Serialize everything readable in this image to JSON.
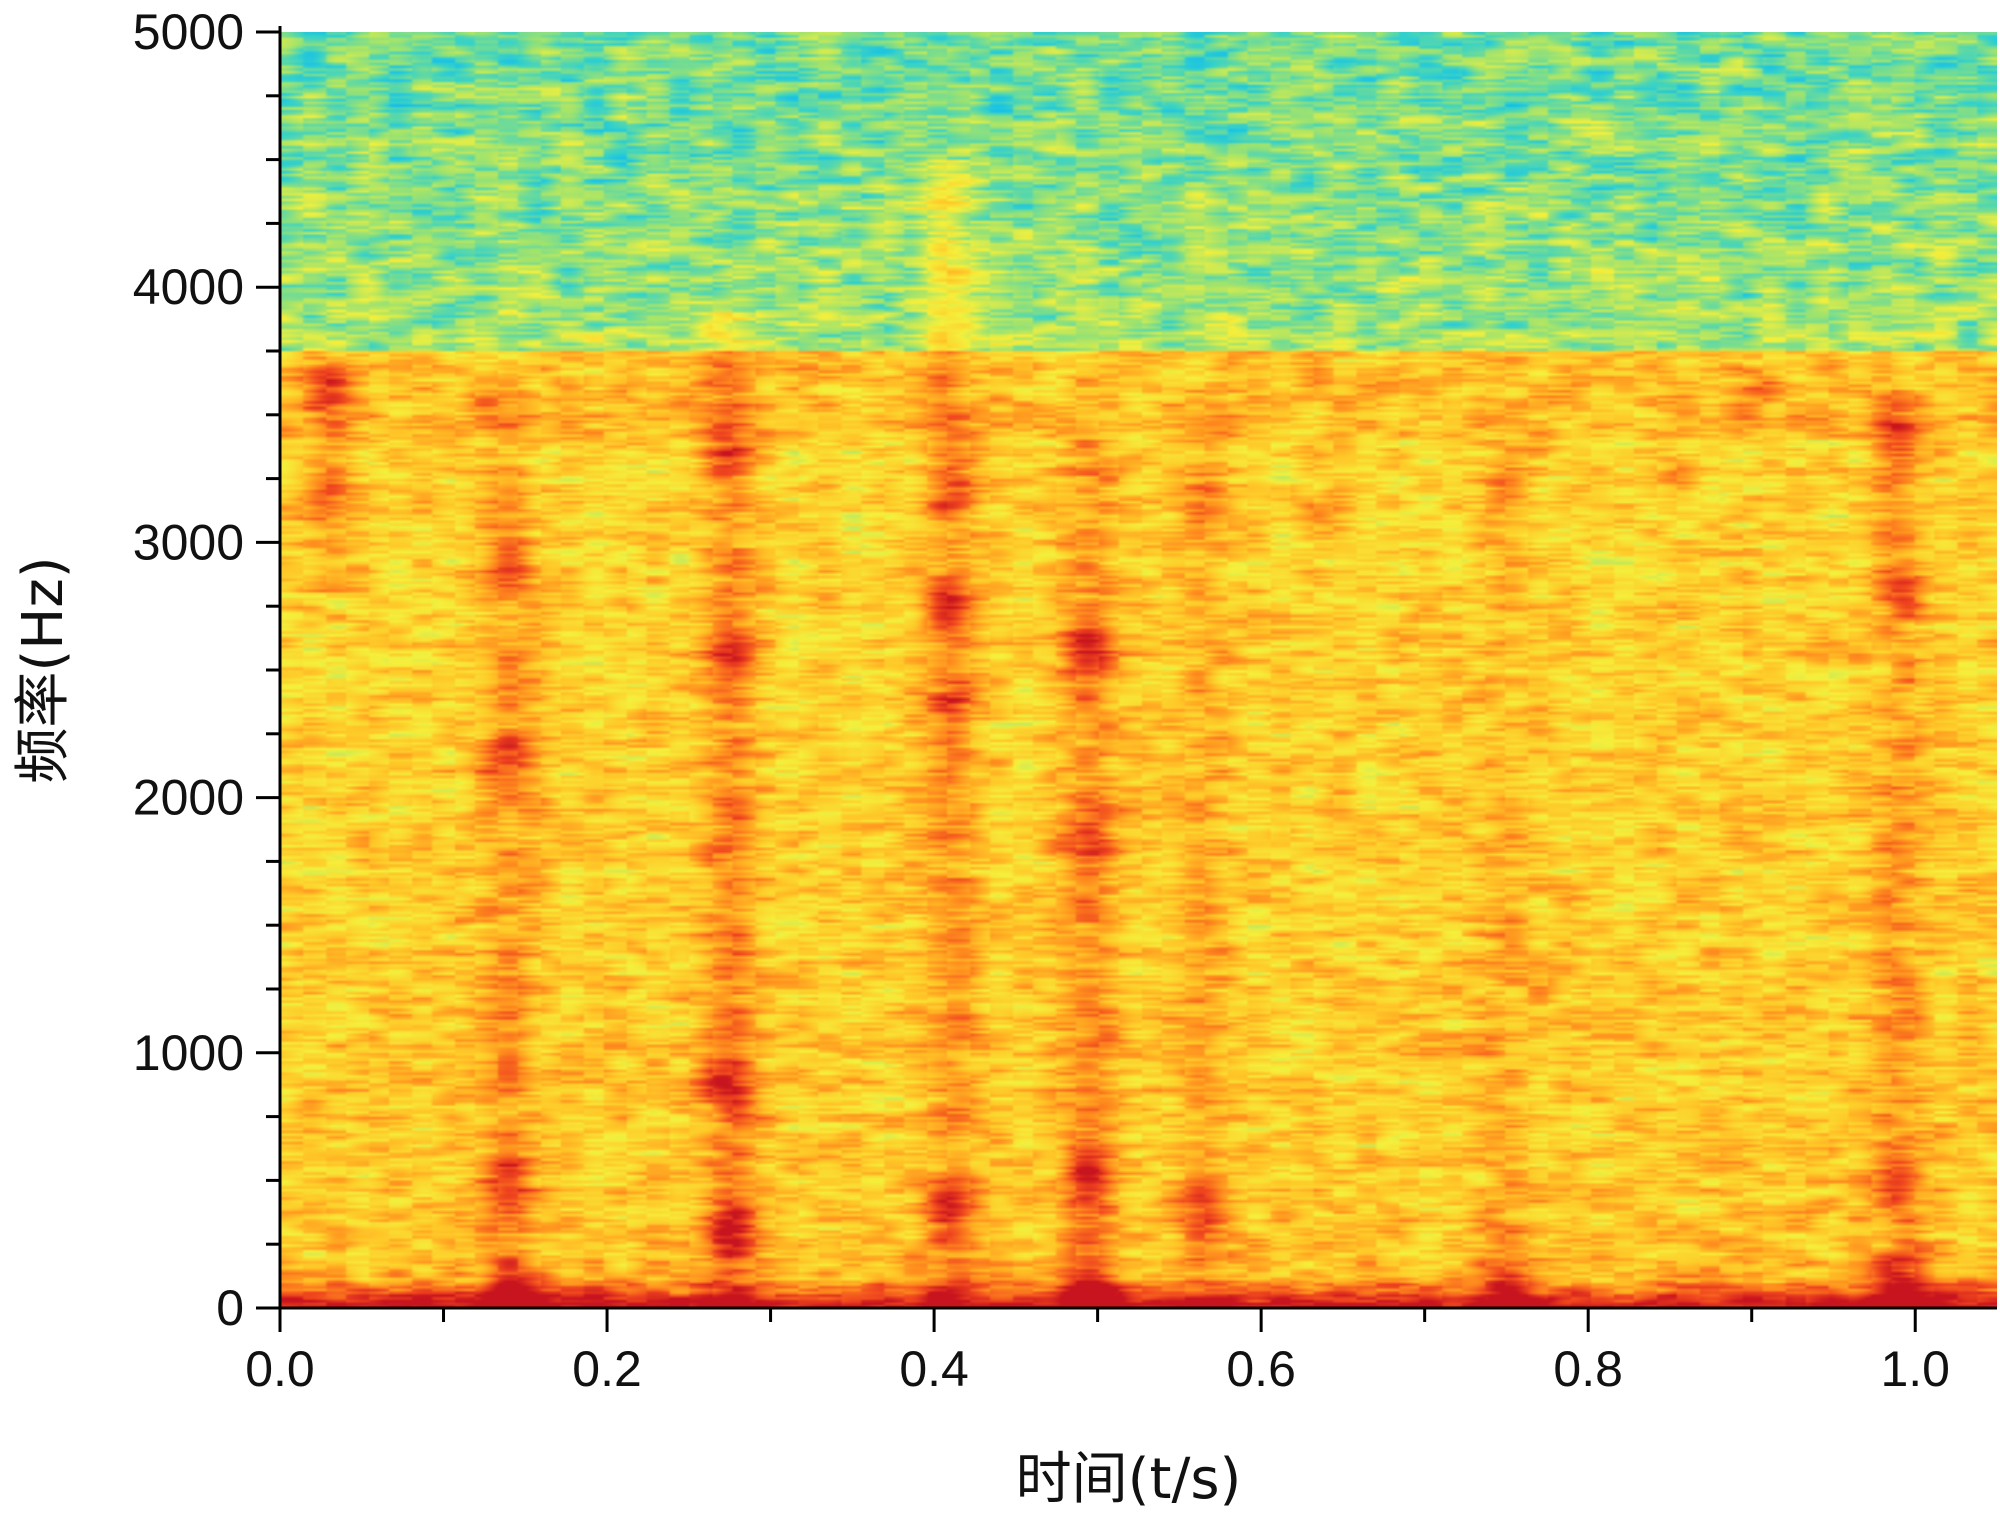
{
  "chart_data": {
    "type": "heatmap",
    "subtype": "spectrogram",
    "title": "",
    "xlabel": "时间(t/s)",
    "ylabel": "频率(Hz)",
    "xlim": [
      0.0,
      1.05
    ],
    "ylim": [
      0,
      5000
    ],
    "x_ticks": [
      "0.0",
      "0.2",
      "0.4",
      "0.6",
      "0.8",
      "1.0"
    ],
    "x_tick_values": [
      0.0,
      0.2,
      0.4,
      0.6,
      0.8,
      1.0
    ],
    "y_ticks": [
      "0",
      "1000",
      "2000",
      "3000",
      "4000",
      "5000"
    ],
    "y_tick_values": [
      0,
      1000,
      2000,
      3000,
      4000,
      5000
    ],
    "colormap": [
      "#00b4ff",
      "#37d2c8",
      "#a0e36e",
      "#f5f03c",
      "#ffc828",
      "#ff8c1e",
      "#f0461e",
      "#c8141e"
    ],
    "grid": false,
    "intensity_scale": "relative 0-1",
    "energy_columns": [
      {
        "t": 0.03,
        "f_range": [
          2800,
          3700
        ],
        "intensity": 0.78
      },
      {
        "t": 0.14,
        "f_range": [
          0,
          3600
        ],
        "intensity": 0.82
      },
      {
        "t": 0.275,
        "f_range": [
          0,
          3900
        ],
        "intensity": 0.92
      },
      {
        "t": 0.41,
        "f_range": [
          0,
          4500
        ],
        "intensity": 0.85
      },
      {
        "t": 0.495,
        "f_range": [
          0,
          3400
        ],
        "intensity": 0.9
      },
      {
        "t": 0.565,
        "f_range": [
          0,
          3600
        ],
        "intensity": 0.72
      },
      {
        "t": 0.75,
        "f_range": [
          0,
          3400
        ],
        "intensity": 0.68
      },
      {
        "t": 0.99,
        "f_range": [
          0,
          3600
        ],
        "intensity": 0.8
      }
    ],
    "energy_blobs": [
      {
        "t": 0.03,
        "f": 3600,
        "intensity": 0.88
      },
      {
        "t": 0.03,
        "f": 3200,
        "intensity": 0.82
      },
      {
        "t": 0.14,
        "f": 2150,
        "intensity": 0.88
      },
      {
        "t": 0.14,
        "f": 2900,
        "intensity": 0.8
      },
      {
        "t": 0.14,
        "f": 500,
        "intensity": 0.9
      },
      {
        "t": 0.14,
        "f": 60,
        "intensity": 0.98
      },
      {
        "t": 0.275,
        "f": 3350,
        "intensity": 0.82
      },
      {
        "t": 0.275,
        "f": 2550,
        "intensity": 0.82
      },
      {
        "t": 0.275,
        "f": 900,
        "intensity": 0.9
      },
      {
        "t": 0.275,
        "f": 300,
        "intensity": 0.98
      },
      {
        "t": 0.41,
        "f": 2750,
        "intensity": 0.92
      },
      {
        "t": 0.41,
        "f": 3200,
        "intensity": 0.85
      },
      {
        "t": 0.41,
        "f": 2350,
        "intensity": 0.82
      },
      {
        "t": 0.41,
        "f": 400,
        "intensity": 0.9
      },
      {
        "t": 0.495,
        "f": 2600,
        "intensity": 0.92
      },
      {
        "t": 0.495,
        "f": 1850,
        "intensity": 0.9
      },
      {
        "t": 0.495,
        "f": 500,
        "intensity": 0.92
      },
      {
        "t": 0.495,
        "f": 80,
        "intensity": 1.0
      },
      {
        "t": 0.565,
        "f": 400,
        "intensity": 0.84
      },
      {
        "t": 0.565,
        "f": 3200,
        "intensity": 0.78
      },
      {
        "t": 0.75,
        "f": 3200,
        "intensity": 0.8
      },
      {
        "t": 0.75,
        "f": 80,
        "intensity": 0.88
      },
      {
        "t": 0.9,
        "f": 3550,
        "intensity": 0.8
      },
      {
        "t": 0.99,
        "f": 3400,
        "intensity": 0.86
      },
      {
        "t": 0.99,
        "f": 2800,
        "intensity": 0.8
      },
      {
        "t": 0.99,
        "f": 500,
        "intensity": 0.9
      },
      {
        "t": 0.99,
        "f": 80,
        "intensity": 0.96
      },
      {
        "t": 0.64,
        "f": 3100,
        "intensity": 0.74
      },
      {
        "t": 0.85,
        "f": 3300,
        "intensity": 0.74
      }
    ]
  }
}
